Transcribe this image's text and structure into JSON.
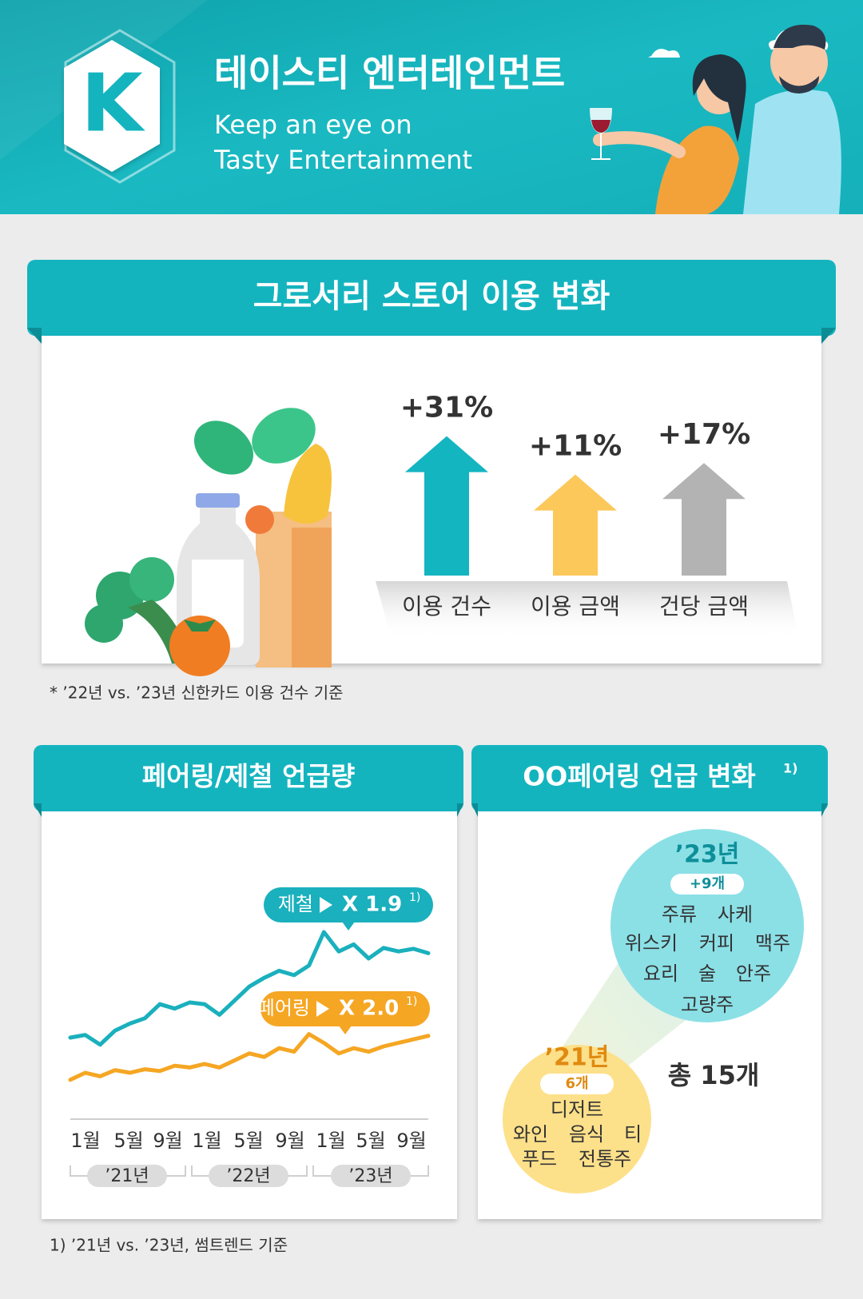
{
  "header": {
    "logo": "K",
    "title": "테이스티 엔터테인먼트",
    "subtitle": [
      "Keep an eye on",
      "Tasty Entertainment"
    ]
  },
  "section1": {
    "title": "그로서리 스토어 이용 변화",
    "items": [
      {
        "label": "이용 건수",
        "value": 31,
        "value_label": "+31%",
        "color": "#13b5c0"
      },
      {
        "label": "이용 금액",
        "value": 11,
        "value_label": "+11%",
        "color": "#fcc85a"
      },
      {
        "label": "건당 금액",
        "value": 17,
        "value_label": "+17%",
        "color": "#b3b3b3"
      }
    ],
    "note": "* ’22년 vs. ’23년 신한카드 이용 건수 기준"
  },
  "section2": {
    "title": "페어링/제철 언급량",
    "series": [
      {
        "name": "제철",
        "color": "#1ab0bd",
        "multiplier": 1.9,
        "multiplier_label": "X 1.9",
        "note_mark": "1)",
        "values": [
          70,
          73,
          62,
          78,
          86,
          92,
          108,
          103,
          110,
          108,
          96,
          112,
          128,
          138,
          146,
          141,
          152,
          190,
          168,
          176,
          160,
          172,
          168,
          171,
          166
        ]
      },
      {
        "name": "페어링",
        "color": "#f5a623",
        "multiplier": 2.0,
        "multiplier_label": "X 2.0",
        "note_mark": "1)",
        "values": [
          22,
          30,
          26,
          33,
          30,
          34,
          32,
          38,
          36,
          40,
          36,
          44,
          52,
          48,
          58,
          54,
          74,
          64,
          52,
          58,
          54,
          60,
          64,
          68,
          72
        ]
      }
    ],
    "months": [
      "1월",
      "5월",
      "9월",
      "1월",
      "5월",
      "9월",
      "1월",
      "5월",
      "9월"
    ],
    "years": [
      "’21년",
      "’22년",
      "’23년"
    ]
  },
  "section3": {
    "title": "OO페어링 언급 변화",
    "title_mark": "1)",
    "bubble_23": {
      "year": "’23년",
      "count": "+9개",
      "rows": [
        [
          "주류",
          "사케"
        ],
        [
          "위스키",
          "커피",
          "맥주"
        ],
        [
          "요리",
          "술",
          "안주"
        ],
        [
          "고량주"
        ]
      ]
    },
    "bubble_21": {
      "year": "’21년",
      "count": "6개",
      "rows": [
        [
          "디저트"
        ],
        [
          "와인",
          "음식",
          "티"
        ],
        [
          "푸드",
          "전통주"
        ]
      ]
    },
    "total": "총 15개"
  },
  "footnote": "1) ’21년 vs. ’23년, 썸트렌드 기준"
}
